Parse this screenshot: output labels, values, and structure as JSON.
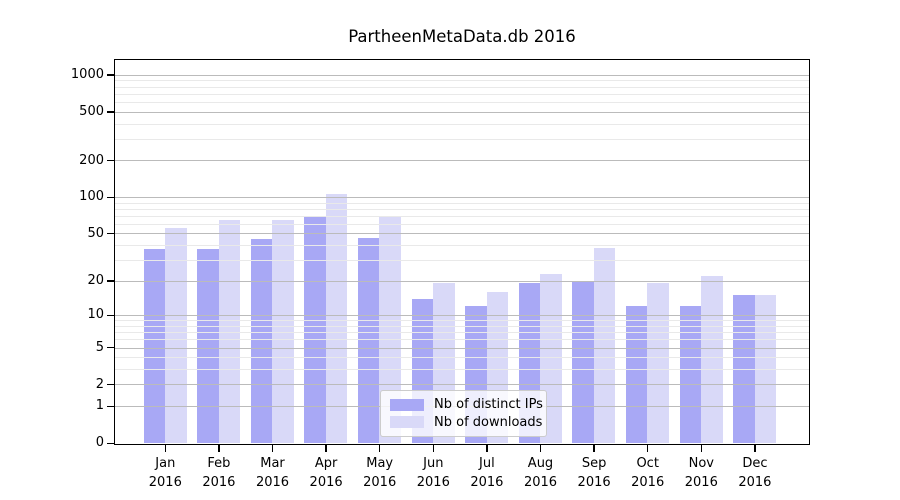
{
  "chart_data": {
    "type": "bar",
    "title": "PartheenMetaData.db 2016",
    "months": [
      "Jan",
      "Feb",
      "Mar",
      "Apr",
      "May",
      "Jun",
      "Jul",
      "Aug",
      "Sep",
      "Oct",
      "Nov",
      "Dec"
    ],
    "year": "2016",
    "series": [
      {
        "name": "Nb of distinct IPs",
        "color": "#a8a8f5",
        "values": [
          37,
          37,
          45,
          70,
          46,
          14,
          12,
          19,
          20,
          12,
          12,
          15
        ]
      },
      {
        "name": "Nb of downloads",
        "color": "#d9d9f8",
        "values": [
          55,
          65,
          65,
          105,
          69,
          19,
          16,
          23,
          38,
          19,
          22,
          15
        ]
      }
    ],
    "y_axis": {
      "scale": "log1p",
      "ylim": [
        0,
        1320
      ],
      "major_ticks": [
        0,
        1,
        2,
        5,
        10,
        20,
        50,
        100,
        200,
        500,
        1000
      ],
      "minor_ticks": [
        3,
        4,
        6,
        7,
        8,
        9,
        30,
        40,
        60,
        70,
        80,
        90,
        300,
        400,
        600,
        700,
        800,
        900
      ]
    },
    "legend_position": "lower center",
    "grid": "horizontal-on-top",
    "colors": {
      "major_grid": "#bbbbbb",
      "minor_grid": "#e9e9e9",
      "spine": "#000000",
      "legend_border": "#cccccc"
    }
  }
}
